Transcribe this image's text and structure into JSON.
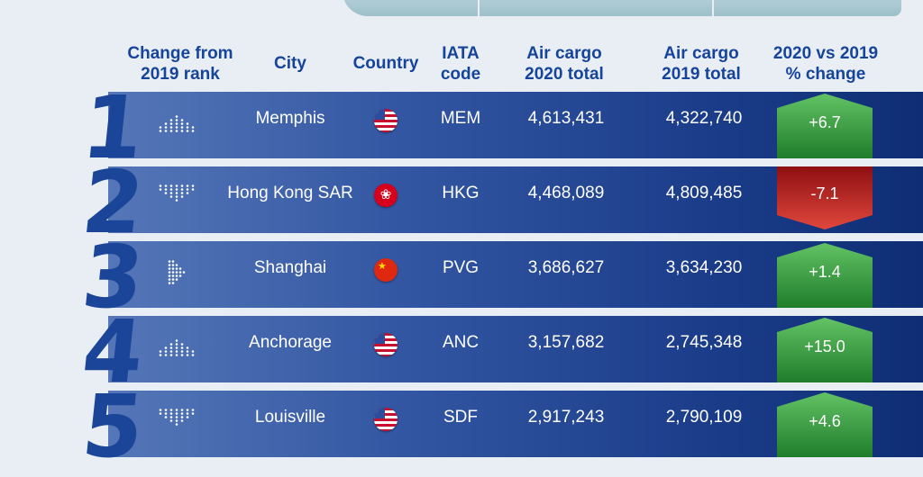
{
  "headers": {
    "change_line1": "Change from",
    "change_line2": "2019 rank",
    "city": "City",
    "country": "Country",
    "iata_line1": "IATA",
    "iata_line2": "code",
    "cargo2020_line1": "Air cargo",
    "cargo2020_line2": "2020 total",
    "cargo2019_line1": "Air cargo",
    "cargo2019_line2": "2019 total",
    "pct_line1": "2020 vs 2019",
    "pct_line2": "% change"
  },
  "rows": [
    {
      "rank": "1",
      "rank_change": "up",
      "city": "Memphis",
      "country_flag": "us-flag-icon",
      "iata": "MEM",
      "cargo_2020": "4,613,431",
      "cargo_2019": "4,322,740",
      "pct_change": "+6.7",
      "direction": "up"
    },
    {
      "rank": "2",
      "rank_change": "down",
      "city": "Hong Kong SAR",
      "country_flag": "hk-flag-icon",
      "iata": "HKG",
      "cargo_2020": "4,468,089",
      "cargo_2019": "4,809,485",
      "pct_change": "-7.1",
      "direction": "down"
    },
    {
      "rank": "3",
      "rank_change": "same",
      "city": "Shanghai",
      "country_flag": "cn-flag-icon",
      "iata": "PVG",
      "cargo_2020": "3,686,627",
      "cargo_2019": "3,634,230",
      "pct_change": "+1.4",
      "direction": "up"
    },
    {
      "rank": "4",
      "rank_change": "up",
      "city": "Anchorage",
      "country_flag": "us-flag-icon",
      "iata": "ANC",
      "cargo_2020": "3,157,682",
      "cargo_2019": "2,745,348",
      "pct_change": "+15.0",
      "direction": "up"
    },
    {
      "rank": "5",
      "rank_change": "down",
      "city": "Louisville",
      "country_flag": "us-flag-icon",
      "iata": "SDF",
      "cargo_2020": "2,917,243",
      "cargo_2019": "2,790,109",
      "pct_change": "+4.6",
      "direction": "up"
    }
  ],
  "colors": {
    "header_text": "#16449a",
    "rank_number": "#1a4598",
    "badge_up": "#2e9e3a",
    "badge_down": "#c41a1a"
  }
}
